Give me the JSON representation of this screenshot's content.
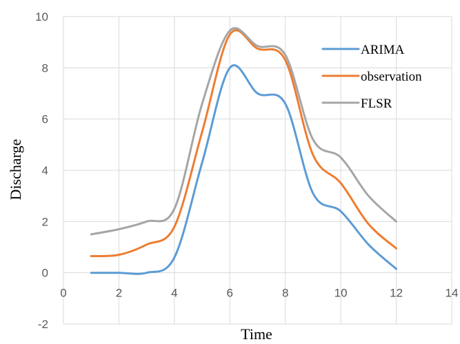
{
  "chart_data": {
    "type": "line",
    "xlabel": "Time",
    "ylabel": "Discharge",
    "xlim": [
      0,
      14
    ],
    "ylim": [
      -2,
      10
    ],
    "xticks": [
      0,
      2,
      4,
      6,
      8,
      10,
      12,
      14
    ],
    "yticks": [
      -2,
      0,
      2,
      4,
      6,
      8,
      10
    ],
    "grid": true,
    "legend_position": "top-right",
    "series": [
      {
        "name": "ARIMA",
        "color": "#5b9bd5",
        "points": [
          [
            1,
            0.0
          ],
          [
            2,
            0.0
          ],
          [
            3,
            0.0
          ],
          [
            4,
            0.6
          ],
          [
            5,
            4.3
          ],
          [
            6,
            8.0
          ],
          [
            7,
            7.0
          ],
          [
            8,
            6.6
          ],
          [
            9,
            3.1
          ],
          [
            10,
            2.4
          ],
          [
            11,
            1.1
          ],
          [
            12,
            0.15
          ]
        ]
      },
      {
        "name": "observation",
        "color": "#ed7d31",
        "points": [
          [
            1,
            0.65
          ],
          [
            2,
            0.7
          ],
          [
            3,
            1.1
          ],
          [
            4,
            1.8
          ],
          [
            5,
            5.5
          ],
          [
            6,
            9.3
          ],
          [
            7,
            8.75
          ],
          [
            8,
            8.3
          ],
          [
            9,
            4.6
          ],
          [
            10,
            3.5
          ],
          [
            11,
            1.9
          ],
          [
            12,
            0.95
          ]
        ]
      },
      {
        "name": "FLSR",
        "color": "#a5a5a5",
        "points": [
          [
            1,
            1.5
          ],
          [
            2,
            1.7
          ],
          [
            3,
            2.0
          ],
          [
            4,
            2.5
          ],
          [
            5,
            6.6
          ],
          [
            6,
            9.45
          ],
          [
            7,
            8.85
          ],
          [
            8,
            8.5
          ],
          [
            9,
            5.2
          ],
          [
            10,
            4.5
          ],
          [
            11,
            3.0
          ],
          [
            12,
            2.0
          ]
        ]
      }
    ]
  }
}
